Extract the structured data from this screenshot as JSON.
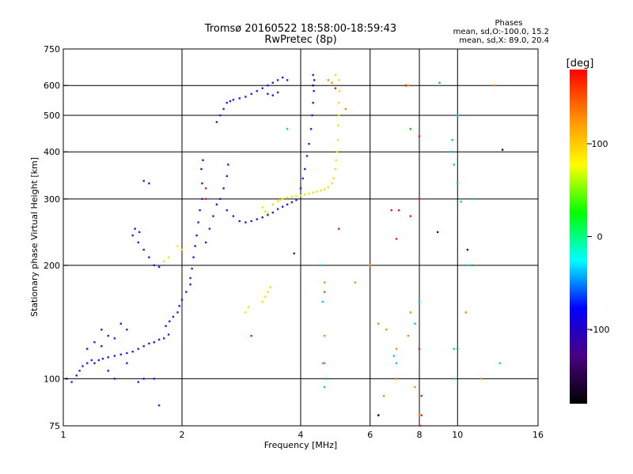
{
  "chart_data": {
    "type": "scatter",
    "title": "Tromsø 20160522 18:58:00-18:59:43",
    "subtitle": "RwPretec (8p)",
    "xlabel": "Frequency [MHz]",
    "ylabel": "Stationary phase Virtual Height [km]",
    "xscale": "log",
    "yscale": "log",
    "xlim": [
      1,
      16
    ],
    "ylim": [
      75,
      750
    ],
    "x_ticks": [
      1,
      2,
      4,
      6,
      8,
      10,
      16
    ],
    "y_ticks": [
      75,
      100,
      200,
      300,
      400,
      500,
      600,
      750
    ],
    "grid": true,
    "stats": {
      "heading": "Phases",
      "line1": "mean, sd,O:-100.0, 15.2",
      "line2": "mean, sd,X:  89.0, 20.4"
    },
    "colorbar": {
      "label": "[deg]",
      "ticks": [
        100,
        0,
        -100
      ],
      "range": [
        -180,
        180
      ],
      "colors": [
        "#000000",
        "#4b0082",
        "#0000ff",
        "#00ffff",
        "#00ff00",
        "#ffff00",
        "#ff8c00",
        "#ff0000"
      ]
    },
    "series": [
      {
        "phase": -100,
        "color": "#2020e0",
        "points": [
          [
            1.02,
            100
          ],
          [
            1.05,
            98
          ],
          [
            1.08,
            102
          ],
          [
            1.1,
            105
          ],
          [
            1.12,
            108
          ],
          [
            1.15,
            110
          ],
          [
            1.18,
            112
          ],
          [
            1.2,
            110
          ],
          [
            1.23,
            112
          ],
          [
            1.26,
            113
          ],
          [
            1.3,
            114
          ],
          [
            1.35,
            115
          ],
          [
            1.4,
            116
          ],
          [
            1.45,
            117
          ],
          [
            1.5,
            118
          ],
          [
            1.55,
            120
          ],
          [
            1.6,
            122
          ],
          [
            1.65,
            124
          ],
          [
            1.7,
            125
          ],
          [
            1.75,
            127
          ],
          [
            1.8,
            128
          ],
          [
            1.85,
            131
          ],
          [
            1.82,
            138
          ],
          [
            1.86,
            142
          ],
          [
            1.9,
            146
          ],
          [
            1.95,
            150
          ],
          [
            1.97,
            156
          ],
          [
            2.0,
            162
          ],
          [
            2.05,
            170
          ],
          [
            2.1,
            178
          ],
          [
            2.1,
            185
          ],
          [
            2.12,
            196
          ],
          [
            2.14,
            210
          ],
          [
            2.16,
            225
          ],
          [
            2.18,
            240
          ],
          [
            2.2,
            260
          ],
          [
            2.22,
            280
          ],
          [
            2.25,
            300
          ],
          [
            2.25,
            330
          ],
          [
            2.24,
            360
          ],
          [
            2.26,
            380
          ],
          [
            2.3,
            230
          ],
          [
            2.35,
            250
          ],
          [
            2.4,
            270
          ],
          [
            2.45,
            290
          ],
          [
            2.5,
            300
          ],
          [
            2.55,
            320
          ],
          [
            2.6,
            345
          ],
          [
            2.62,
            370
          ],
          [
            2.45,
            480
          ],
          [
            2.5,
            500
          ],
          [
            2.55,
            520
          ],
          [
            2.6,
            540
          ],
          [
            2.65,
            545
          ],
          [
            2.7,
            550
          ],
          [
            2.8,
            555
          ],
          [
            2.9,
            560
          ],
          [
            3.0,
            570
          ],
          [
            3.1,
            580
          ],
          [
            3.2,
            590
          ],
          [
            3.3,
            600
          ],
          [
            3.4,
            610
          ],
          [
            3.5,
            620
          ],
          [
            3.6,
            630
          ],
          [
            3.7,
            620
          ],
          [
            3.3,
            570
          ],
          [
            3.4,
            565
          ],
          [
            3.5,
            575
          ],
          [
            2.6,
            280
          ],
          [
            2.7,
            270
          ],
          [
            2.8,
            262
          ],
          [
            2.9,
            260
          ],
          [
            3.0,
            262
          ],
          [
            3.1,
            265
          ],
          [
            3.2,
            268
          ],
          [
            3.3,
            272
          ],
          [
            3.4,
            276
          ],
          [
            3.5,
            282
          ],
          [
            3.6,
            286
          ],
          [
            3.7,
            290
          ],
          [
            3.8,
            294
          ],
          [
            3.9,
            298
          ],
          [
            4.0,
            320
          ],
          [
            4.05,
            340
          ],
          [
            4.1,
            360
          ],
          [
            4.15,
            390
          ],
          [
            4.2,
            420
          ],
          [
            4.25,
            460
          ],
          [
            4.28,
            500
          ],
          [
            4.3,
            540
          ],
          [
            4.32,
            580
          ],
          [
            4.33,
            620
          ],
          [
            4.3,
            640
          ],
          [
            1.5,
            240
          ],
          [
            1.55,
            230
          ],
          [
            1.6,
            220
          ],
          [
            1.65,
            210
          ],
          [
            1.7,
            200
          ],
          [
            1.75,
            198
          ],
          [
            1.52,
            250
          ],
          [
            1.56,
            245
          ],
          [
            1.6,
            335
          ],
          [
            1.65,
            330
          ],
          [
            1.15,
            120
          ],
          [
            1.2,
            125
          ],
          [
            1.25,
            122
          ],
          [
            1.3,
            130
          ],
          [
            1.35,
            128
          ],
          [
            1.25,
            135
          ],
          [
            1.4,
            140
          ],
          [
            1.45,
            135
          ],
          [
            1.3,
            105
          ],
          [
            1.35,
            100
          ],
          [
            1.45,
            110
          ],
          [
            1.55,
            98
          ],
          [
            1.6,
            100
          ],
          [
            1.7,
            100
          ],
          [
            1.75,
            85
          ],
          [
            3.85,
            215
          ],
          [
            6.3,
            80
          ]
        ]
      },
      {
        "phase": 100,
        "color": "#e8e800",
        "points": [
          [
            3.6,
            300
          ],
          [
            3.7,
            302
          ],
          [
            3.8,
            304
          ],
          [
            3.9,
            305
          ],
          [
            4.0,
            306
          ],
          [
            4.1,
            308
          ],
          [
            4.2,
            310
          ],
          [
            4.3,
            312
          ],
          [
            4.4,
            314
          ],
          [
            4.5,
            316
          ],
          [
            4.6,
            318
          ],
          [
            4.7,
            322
          ],
          [
            4.8,
            330
          ],
          [
            4.85,
            340
          ],
          [
            4.9,
            360
          ],
          [
            4.92,
            380
          ],
          [
            4.95,
            400
          ],
          [
            4.97,
            430
          ],
          [
            4.98,
            470
          ],
          [
            5.0,
            500
          ],
          [
            5.0,
            540
          ],
          [
            5.02,
            580
          ],
          [
            5.0,
            620
          ],
          [
            4.9,
            640
          ],
          [
            3.2,
            285
          ],
          [
            3.25,
            278
          ],
          [
            3.3,
            275
          ],
          [
            3.4,
            290
          ],
          [
            3.5,
            296
          ],
          [
            3.55,
            298
          ],
          [
            3.2,
            160
          ],
          [
            3.25,
            165
          ],
          [
            3.3,
            170
          ],
          [
            3.35,
            175
          ],
          [
            2.9,
            150
          ],
          [
            2.95,
            155
          ],
          [
            2.0,
            220
          ],
          [
            1.95,
            225
          ],
          [
            1.8,
            205
          ],
          [
            1.85,
            210
          ]
        ]
      },
      {
        "phase": 140,
        "color": "#ff8c00",
        "points": [
          [
            4.7,
            620
          ],
          [
            4.8,
            610
          ],
          [
            5.2,
            520
          ],
          [
            4.6,
            180
          ],
          [
            4.6,
            130
          ],
          [
            4.55,
            110
          ],
          [
            5.5,
            180
          ],
          [
            6.0,
            200
          ],
          [
            6.3,
            140
          ],
          [
            6.6,
            135
          ],
          [
            7.0,
            120
          ],
          [
            7.0,
            100
          ],
          [
            6.5,
            90
          ],
          [
            7.5,
            600
          ],
          [
            7.5,
            130
          ],
          [
            7.6,
            150
          ],
          [
            10.5,
            150
          ],
          [
            11.5,
            100
          ],
          [
            12.4,
            600
          ],
          [
            8.0,
            80
          ],
          [
            7.8,
            95
          ]
        ]
      },
      {
        "phase": 170,
        "color": "#e02020",
        "points": [
          [
            2.3,
            320
          ],
          [
            2.3,
            300
          ],
          [
            3.0,
            130
          ],
          [
            6.8,
            280
          ],
          [
            7.0,
            235
          ],
          [
            7.1,
            280
          ],
          [
            7.4,
            600
          ],
          [
            7.6,
            270
          ],
          [
            8.0,
            440
          ],
          [
            8.0,
            300
          ],
          [
            8.1,
            90
          ],
          [
            8.0,
            120
          ],
          [
            8.05,
            75
          ],
          [
            8.1,
            80
          ],
          [
            5.0,
            250
          ],
          [
            4.9,
            590
          ]
        ]
      },
      {
        "phase": -30,
        "color": "#00c8ff",
        "points": [
          [
            3.7,
            460
          ],
          [
            4.5,
            200
          ],
          [
            4.55,
            160
          ],
          [
            4.6,
            110
          ],
          [
            4.6,
            95
          ],
          [
            6.9,
            115
          ],
          [
            7.0,
            110
          ],
          [
            7.8,
            140
          ],
          [
            8.0,
            160
          ],
          [
            9.6,
            400
          ],
          [
            9.7,
            430
          ],
          [
            9.8,
            370
          ],
          [
            10.0,
            500
          ],
          [
            9.8,
            120
          ],
          [
            9.8,
            100
          ],
          [
            10.0,
            330
          ],
          [
            10.2,
            295
          ],
          [
            10.6,
            200
          ],
          [
            11.0,
            300
          ],
          [
            12.8,
            110
          ]
        ]
      },
      {
        "phase": 20,
        "color": "#20c020",
        "points": [
          [
            9.0,
            610
          ],
          [
            4.6,
            170
          ],
          [
            4.65,
            100
          ],
          [
            10.0,
            120
          ],
          [
            7.6,
            460
          ],
          [
            10.9,
            200
          ]
        ]
      },
      {
        "phase": -150,
        "color": "#3a0070",
        "points": [
          [
            6.3,
            80
          ],
          [
            8.9,
            245
          ],
          [
            10.6,
            220
          ],
          [
            13.0,
            405
          ],
          [
            4.3,
            600
          ]
        ]
      }
    ]
  }
}
